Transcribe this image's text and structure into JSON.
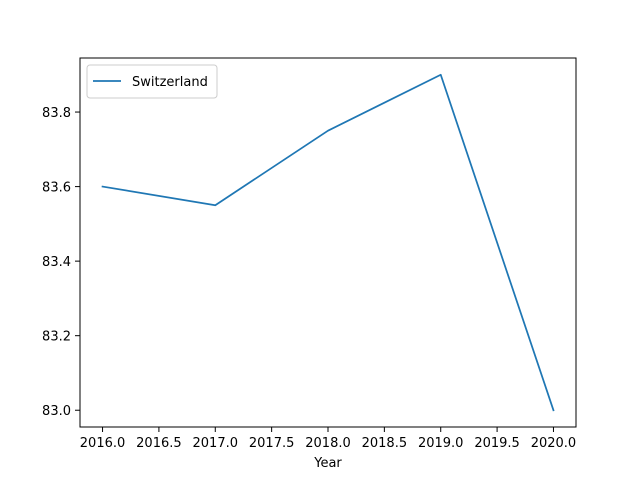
{
  "chart_data": {
    "type": "line",
    "title": "",
    "xlabel": "Year",
    "ylabel": "",
    "xlim": [
      2015.8,
      2020.2
    ],
    "ylim": [
      82.955,
      83.945
    ],
    "x_ticks": [
      2016.0,
      2016.5,
      2017.0,
      2017.5,
      2018.0,
      2018.5,
      2019.0,
      2019.5,
      2020.0
    ],
    "x_tick_labels": [
      "2016.0",
      "2016.5",
      "2017.0",
      "2017.5",
      "2018.0",
      "2018.5",
      "2019.0",
      "2019.5",
      "2020.0"
    ],
    "y_ticks": [
      83.0,
      83.2,
      83.4,
      83.6,
      83.8
    ],
    "y_tick_labels": [
      "83.0",
      "83.2",
      "83.4",
      "83.6",
      "83.8"
    ],
    "grid": false,
    "legend_position": "upper-left",
    "series": [
      {
        "name": "Switzerland",
        "color": "#1f77b4",
        "x": [
          2016,
          2017,
          2018,
          2019,
          2020
        ],
        "y": [
          83.6,
          83.55,
          83.75,
          83.9,
          83.0
        ]
      }
    ]
  }
}
